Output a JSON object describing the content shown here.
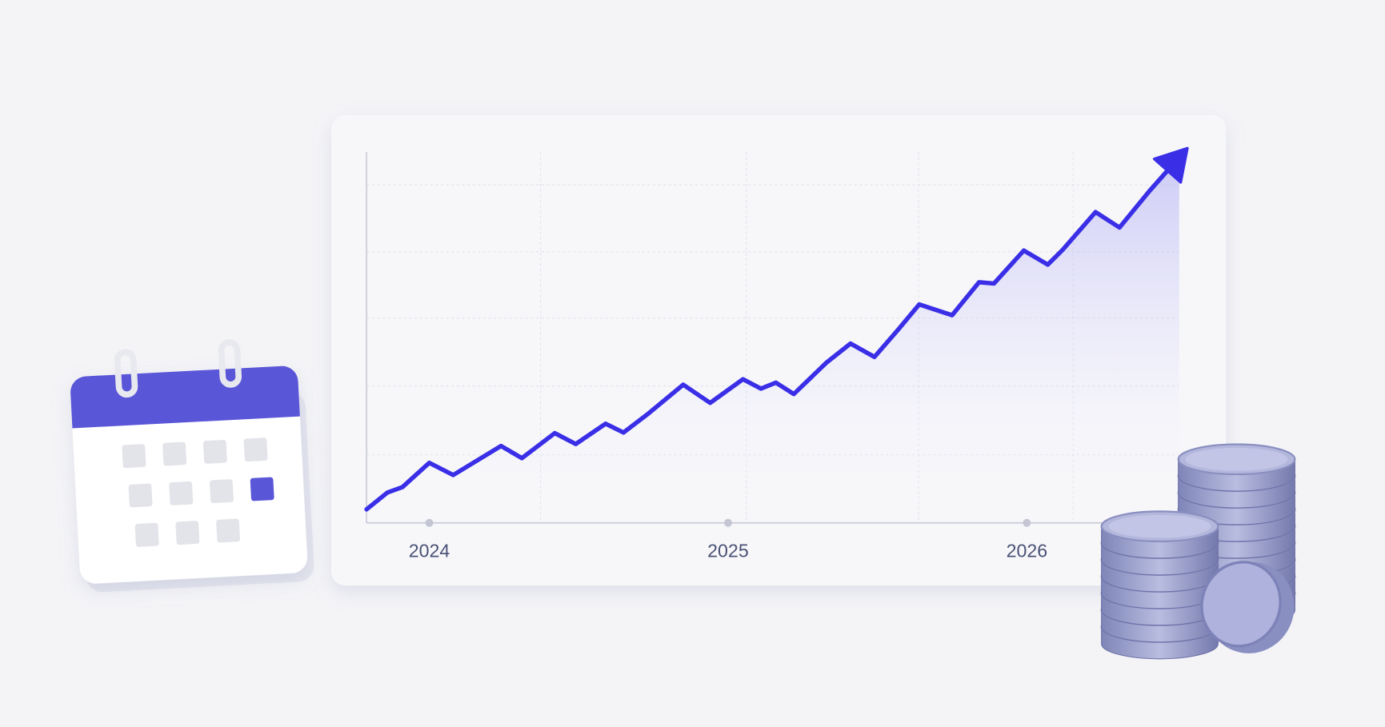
{
  "chart_data": {
    "type": "line",
    "x": [
      2023.79,
      2023.86,
      2023.91,
      2024.0,
      2024.08,
      2024.24,
      2024.31,
      2024.42,
      2024.49,
      2024.59,
      2024.65,
      2024.73,
      2024.85,
      2024.94,
      2025.05,
      2025.11,
      2025.16,
      2025.22,
      2025.33,
      2025.41,
      2025.49,
      2025.57,
      2025.64,
      2025.75,
      2025.84,
      2025.89,
      2025.99,
      2026.07,
      2026.12,
      2026.23,
      2026.31,
      2026.41,
      2026.51
    ],
    "values": [
      0.2,
      0.45,
      0.53,
      0.89,
      0.71,
      1.14,
      0.96,
      1.33,
      1.17,
      1.47,
      1.34,
      1.61,
      2.05,
      1.78,
      2.13,
      1.99,
      2.08,
      1.91,
      2.38,
      2.66,
      2.46,
      2.87,
      3.24,
      3.08,
      3.57,
      3.55,
      4.04,
      3.83,
      4.05,
      4.61,
      4.38,
      4.92,
      5.42
    ],
    "color": "#3a2fe6",
    "xlim": [
      2023.79,
      2026.51
    ],
    "xticks": [
      2024,
      2025,
      2026
    ],
    "ylim": [
      0,
      5.5
    ]
  }
}
